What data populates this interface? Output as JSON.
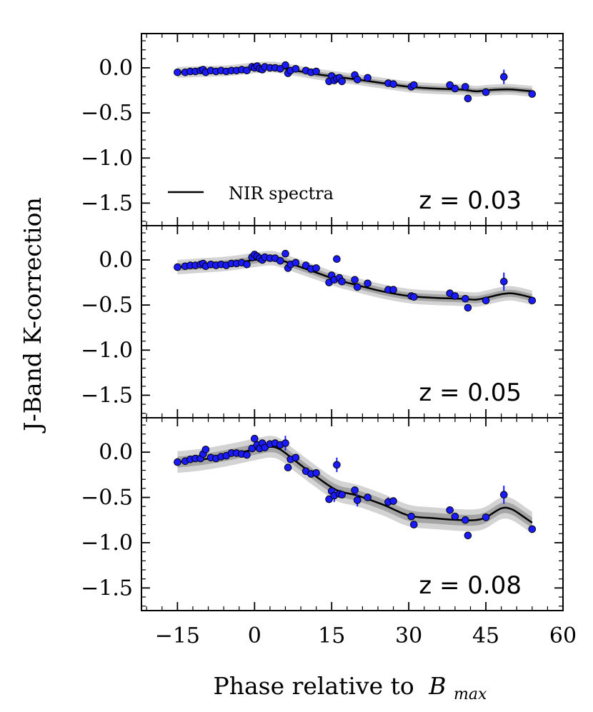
{
  "chart_data": {
    "type": "scatter",
    "xlabel": "Phase relative to",
    "xlabel_math": "B",
    "xlabel_sub": "max",
    "ylabel": "J-Band K-correction",
    "xlim": [
      -22,
      60
    ],
    "ylim": [
      -1.75,
      0.38
    ],
    "xticks": [
      -15,
      0,
      15,
      30,
      45,
      60
    ],
    "xtick_labels": [
      "−15",
      "0",
      "15",
      "30",
      "45",
      "60"
    ],
    "yticks": [
      0.0,
      -0.5,
      -1.0,
      -1.5
    ],
    "ytick_labels": [
      "0.0",
      "−0.5",
      "−1.0",
      "−1.5"
    ],
    "legend": {
      "label": "NIR spectra",
      "placement": "lower-left of top panel"
    },
    "colors": {
      "points": "#1a1aff",
      "curve": "#000000",
      "band_outer": "#c8c8c8",
      "band_inner": "#9a9a9a"
    },
    "panels": [
      {
        "annotation": "z = 0.03",
        "band_half_width": 0.03,
        "curve": {
          "x": [
            -15,
            -10,
            -5,
            0,
            3,
            5,
            8,
            12,
            16,
            20,
            25,
            30,
            35,
            40,
            43,
            45,
            48,
            50,
            52,
            54
          ],
          "y": [
            -0.05,
            -0.04,
            -0.03,
            0.0,
            0.01,
            0.0,
            -0.03,
            -0.07,
            -0.1,
            -0.13,
            -0.17,
            -0.21,
            -0.23,
            -0.24,
            -0.26,
            -0.25,
            -0.24,
            -0.24,
            -0.25,
            -0.26
          ]
        },
        "points": {
          "x": [
            -15,
            -13.5,
            -12.5,
            -11.5,
            -10.5,
            -10,
            -9.5,
            -8.5,
            -7.5,
            -6.5,
            -5.5,
            -4.5,
            -3.5,
            -2.5,
            -1.5,
            -0.5,
            0,
            0.5,
            1,
            1.5,
            2,
            3,
            4,
            5,
            6,
            6.5,
            7,
            8,
            10,
            11,
            12,
            14.5,
            15,
            15.5,
            16,
            16.5,
            17,
            19.5,
            20,
            22,
            26,
            27,
            30.5,
            31,
            38,
            39,
            41,
            41.5,
            45,
            48.5,
            54
          ],
          "y": [
            -0.05,
            -0.05,
            -0.04,
            -0.04,
            -0.03,
            -0.02,
            -0.05,
            -0.03,
            -0.04,
            -0.03,
            -0.04,
            -0.03,
            -0.03,
            -0.02,
            -0.03,
            0.01,
            0.0,
            0.02,
            -0.01,
            -0.02,
            0.01,
            0.0,
            0.0,
            -0.01,
            0.03,
            -0.06,
            -0.03,
            -0.01,
            -0.03,
            -0.05,
            -0.04,
            -0.15,
            -0.09,
            -0.14,
            -0.12,
            -0.11,
            -0.15,
            -0.08,
            -0.13,
            -0.11,
            -0.17,
            -0.18,
            -0.21,
            -0.19,
            -0.19,
            -0.23,
            -0.21,
            -0.34,
            -0.27,
            -0.1,
            -0.29
          ],
          "err": {
            "48.5": 0.08
          }
        }
      },
      {
        "annotation": "z = 0.05",
        "band_half_width": 0.04,
        "curve": {
          "x": [
            -15,
            -10,
            -5,
            0,
            3,
            5,
            8,
            12,
            16,
            20,
            25,
            30,
            35,
            40,
            43,
            45,
            48,
            50,
            52,
            54
          ],
          "y": [
            -0.08,
            -0.06,
            -0.04,
            0.0,
            0.02,
            0.0,
            -0.06,
            -0.14,
            -0.22,
            -0.28,
            -0.35,
            -0.4,
            -0.42,
            -0.43,
            -0.44,
            -0.42,
            -0.38,
            -0.37,
            -0.39,
            -0.42
          ]
        },
        "points": {
          "x": [
            -15,
            -13.5,
            -12.5,
            -11.5,
            -10.5,
            -10,
            -9.5,
            -8.5,
            -7.5,
            -6.5,
            -5.5,
            -4.5,
            -3.5,
            -2.5,
            -1.5,
            -0.5,
            0,
            0.5,
            1,
            1.5,
            2,
            3,
            4,
            5,
            6,
            6.5,
            7,
            8,
            10,
            11,
            12,
            14.5,
            15,
            15.5,
            16,
            16.5,
            17,
            19.5,
            20,
            22,
            26,
            27,
            30.5,
            31,
            38,
            39,
            41,
            41.5,
            45,
            48.5,
            54
          ],
          "y": [
            -0.08,
            -0.07,
            -0.06,
            -0.06,
            -0.05,
            -0.04,
            -0.07,
            -0.05,
            -0.06,
            -0.05,
            -0.06,
            -0.04,
            -0.04,
            -0.03,
            -0.05,
            0.03,
            0.06,
            0.04,
            0.02,
            0.0,
            0.03,
            0.02,
            0.02,
            -0.01,
            0.07,
            -0.09,
            -0.05,
            -0.03,
            -0.06,
            -0.1,
            -0.09,
            -0.25,
            -0.17,
            -0.22,
            0.01,
            -0.2,
            -0.24,
            -0.22,
            -0.3,
            -0.26,
            -0.33,
            -0.33,
            -0.4,
            -0.41,
            -0.37,
            -0.4,
            -0.43,
            -0.53,
            -0.45,
            -0.24,
            -0.45
          ],
          "err": {
            "48.5": 0.1
          }
        }
      },
      {
        "annotation": "z = 0.08",
        "band_half_width": 0.06,
        "curve": {
          "x": [
            -15,
            -10,
            -5,
            0,
            3,
            5,
            8,
            12,
            16,
            20,
            25,
            30,
            35,
            40,
            43,
            45,
            48,
            50,
            52,
            54
          ],
          "y": [
            -0.11,
            -0.08,
            -0.03,
            0.03,
            0.06,
            0.03,
            -0.1,
            -0.27,
            -0.42,
            -0.48,
            -0.58,
            -0.7,
            -0.73,
            -0.75,
            -0.75,
            -0.72,
            -0.62,
            -0.63,
            -0.7,
            -0.78
          ]
        },
        "points": {
          "x": [
            -15,
            -13.5,
            -12.5,
            -11.5,
            -10.5,
            -10,
            -9.5,
            -8.5,
            -7.5,
            -6.5,
            -5.5,
            -4.5,
            -3.5,
            -2.5,
            -1.5,
            -0.5,
            0,
            0.5,
            1,
            1.5,
            2,
            3,
            4,
            5,
            6,
            6.5,
            7,
            8,
            10,
            11,
            12,
            14.5,
            15,
            15.5,
            16,
            16.5,
            17,
            19.5,
            20,
            22,
            26,
            27,
            30.5,
            31,
            38,
            39,
            41,
            41.5,
            45,
            48.5,
            54
          ],
          "y": [
            -0.11,
            -0.1,
            -0.08,
            -0.07,
            -0.07,
            -0.02,
            0.03,
            -0.06,
            -0.07,
            -0.05,
            -0.04,
            -0.01,
            -0.01,
            -0.02,
            -0.03,
            0.04,
            0.15,
            0.08,
            0.04,
            0.1,
            0.05,
            0.09,
            0.1,
            0.08,
            0.1,
            -0.17,
            -0.08,
            -0.06,
            -0.21,
            -0.24,
            -0.23,
            -0.52,
            -0.43,
            -0.48,
            -0.14,
            -0.46,
            -0.47,
            -0.42,
            -0.53,
            -0.5,
            -0.55,
            -0.54,
            -0.71,
            -0.8,
            -0.64,
            -0.71,
            -0.75,
            -0.92,
            -0.72,
            -0.47,
            -0.85
          ],
          "err": {
            "-15": 0.03,
            "6": 0.08,
            "15.5": 0.07,
            "16": 0.08,
            "20": 0.07,
            "26": 0.05,
            "48.5": 0.1
          }
        }
      }
    ]
  }
}
